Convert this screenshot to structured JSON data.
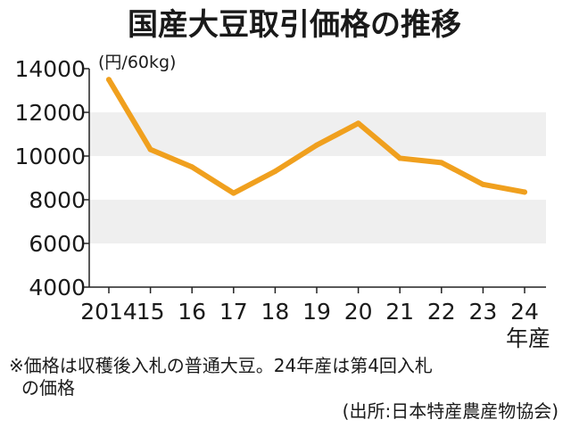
{
  "chart_data": {
    "type": "line",
    "title": "国産大豆取引価格の推移",
    "unit_label": "(円/60kg)",
    "x_categories": [
      "2014",
      "15",
      "16",
      "17",
      "18",
      "19",
      "20",
      "21",
      "22",
      "23",
      "24"
    ],
    "x_suffix": "年産",
    "series": [
      {
        "values": [
          13500,
          10300,
          9500,
          8300,
          9300,
          10500,
          11500,
          9900,
          9700,
          8700,
          8350
        ]
      }
    ],
    "ylim": [
      4000,
      14000
    ],
    "yticks": [
      4000,
      6000,
      8000,
      10000,
      12000,
      14000
    ],
    "grid": "horizontal alternating bands",
    "colors": {
      "line": "#f0a01e",
      "band": "#efefef",
      "axis": "#222222"
    },
    "notes": [
      "※価格は収穫後入札の普通大豆。24年産は第4回入札",
      "の価格"
    ],
    "source": "(出所:日本特産農産物協会)"
  }
}
